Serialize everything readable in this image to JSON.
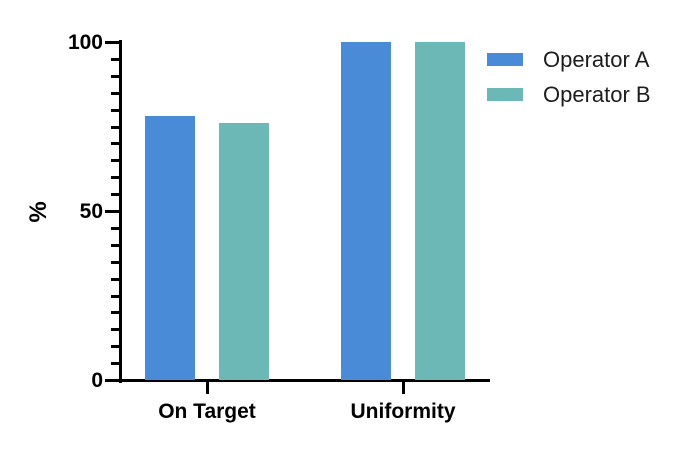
{
  "chart_data": {
    "type": "bar",
    "title": "",
    "categories": [
      "On Target",
      "Uniformity"
    ],
    "series": [
      {
        "name": "Operator A",
        "color": "#4a8bd7",
        "values": [
          78,
          100
        ]
      },
      {
        "name": "Operator B",
        "color": "#6cb8b6",
        "values": [
          76,
          100
        ]
      }
    ],
    "xlabel": "",
    "ylabel": "%",
    "ylim": [
      0,
      100
    ],
    "yticks": [
      0,
      50,
      100
    ],
    "minor_tick_step": 5,
    "grid": false,
    "legend_position": "top-right",
    "axis_color": "#000000",
    "background": "#ffffff"
  }
}
